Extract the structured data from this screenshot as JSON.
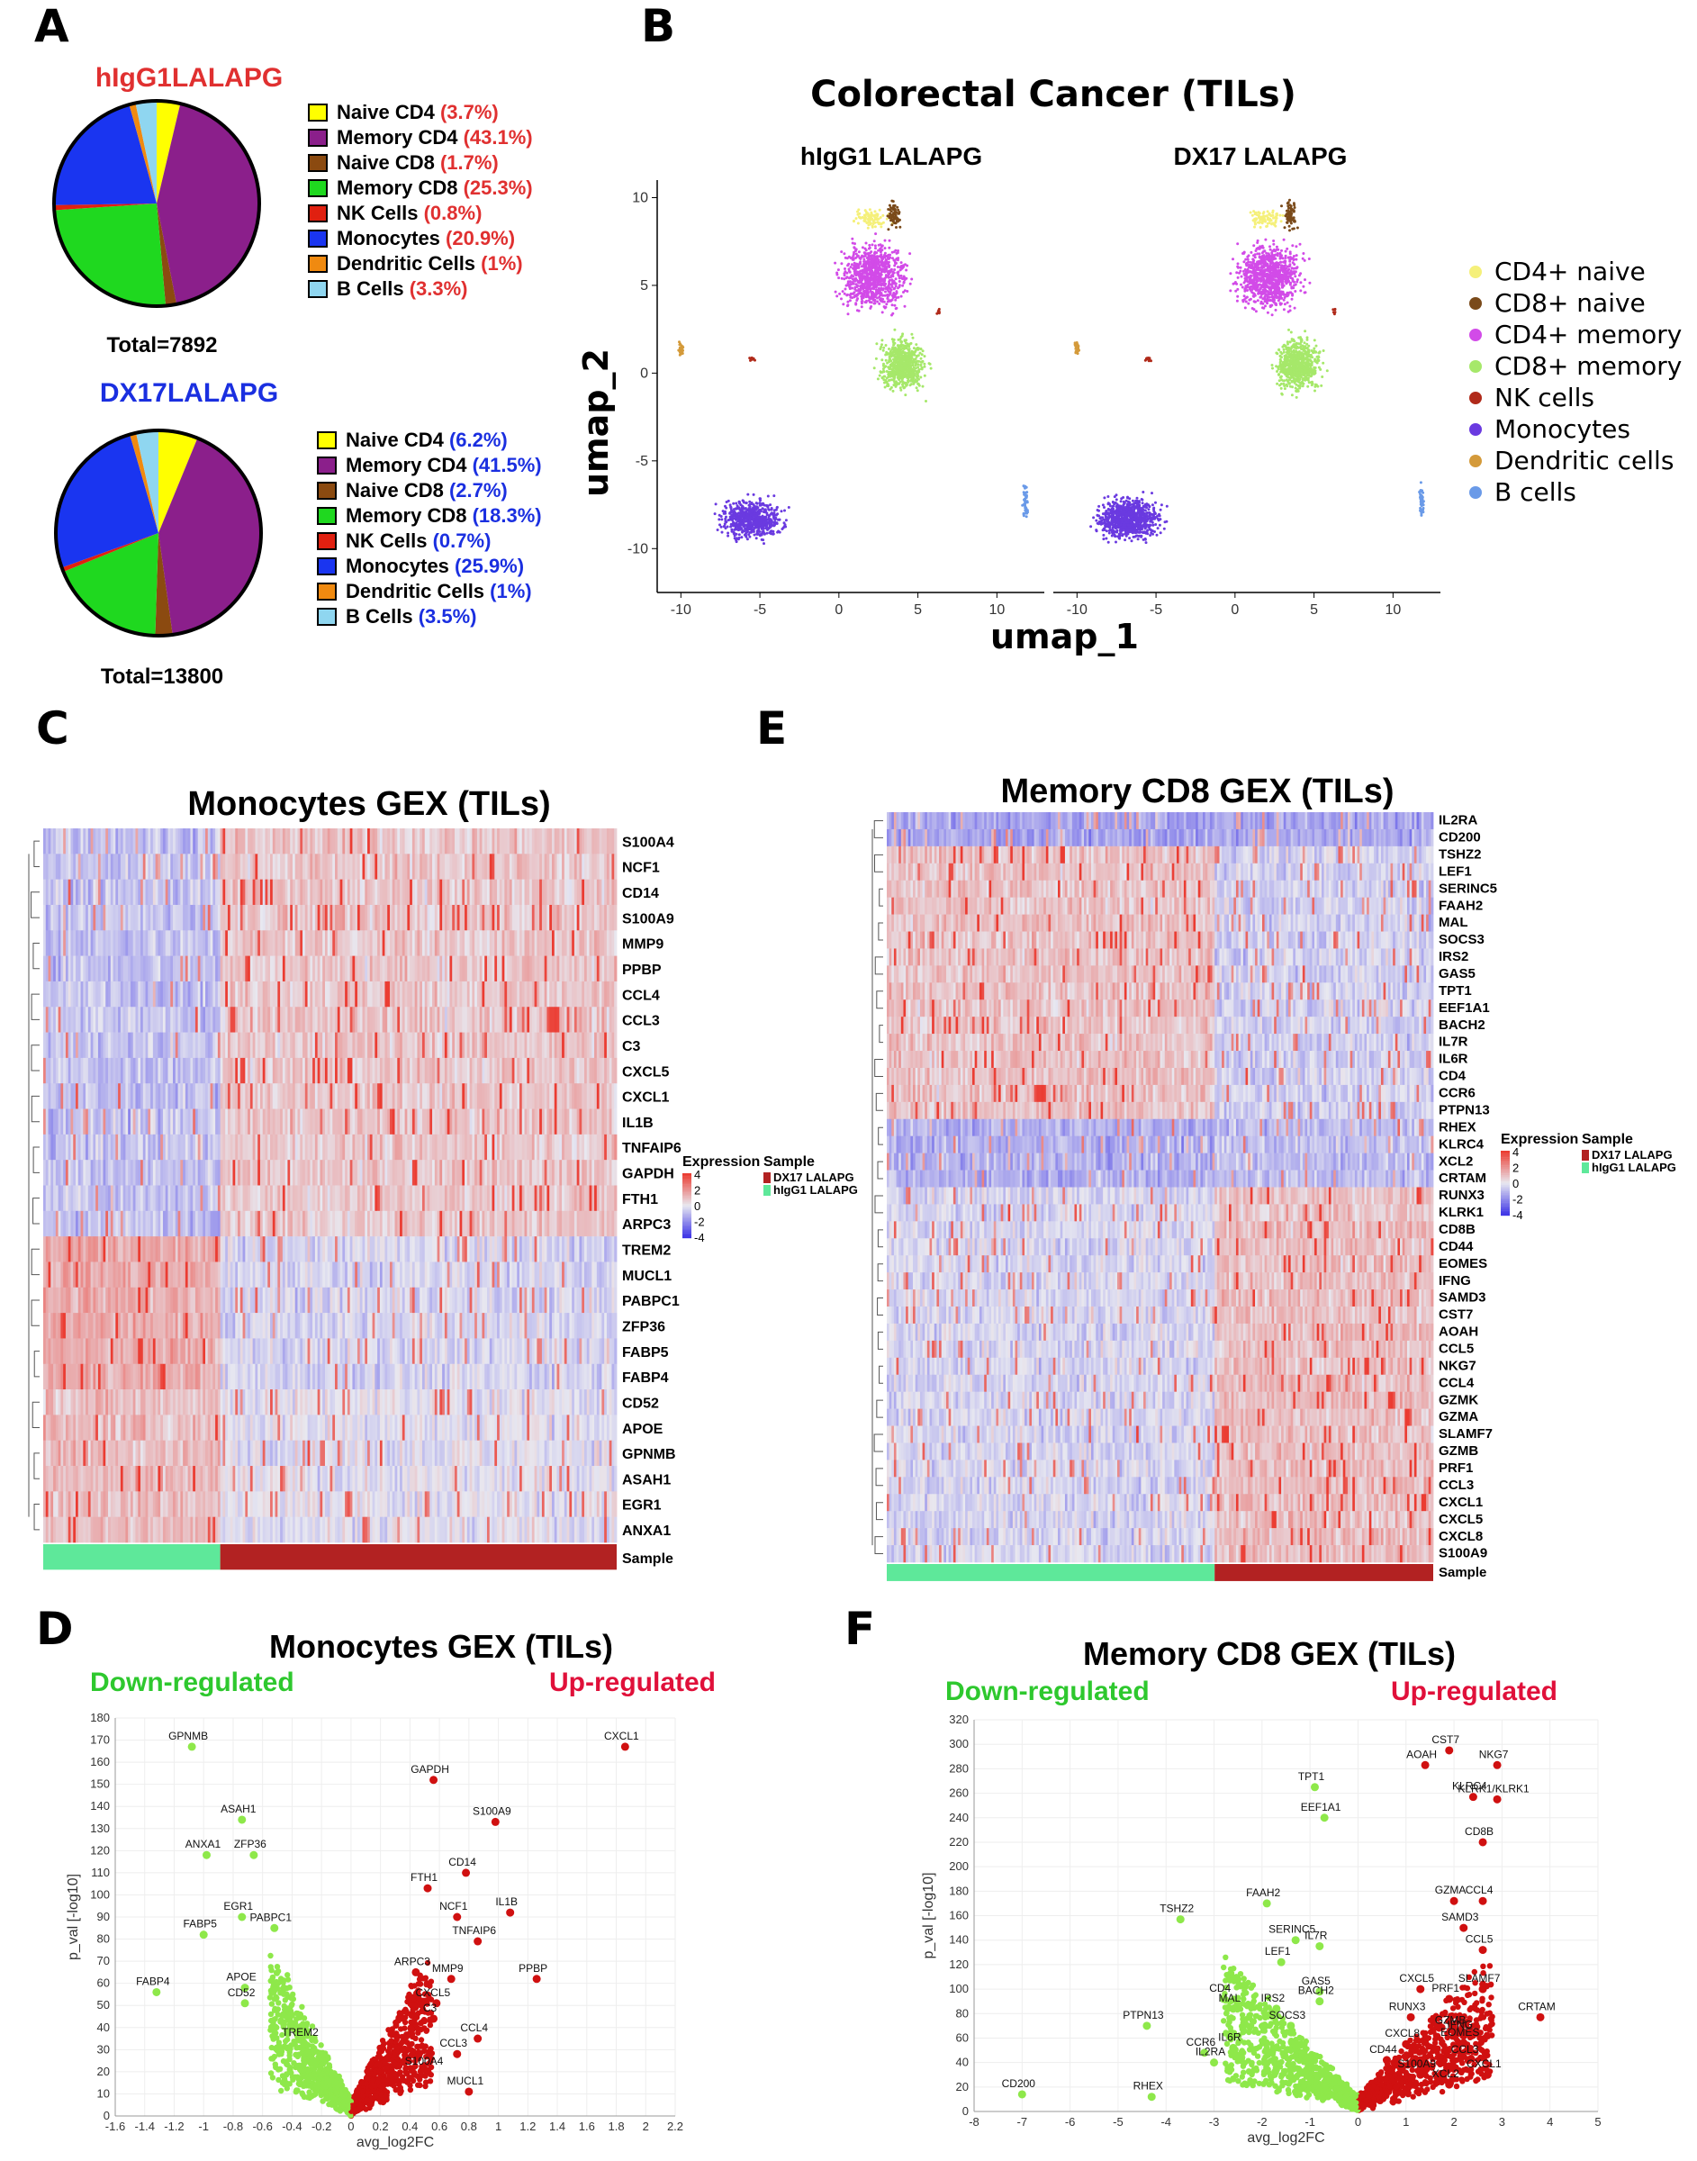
{
  "panels": {
    "A": {
      "letter": "A",
      "pie1": {
        "title": "hIgG1LALAPG",
        "title_color": "#e03030",
        "total": "Total=7892",
        "value_color": "#e03030",
        "slices": [
          {
            "label": "Naive CD4",
            "value_text": "(3.7%)",
            "value": 3.7,
            "color": "#ffff00"
          },
          {
            "label": "Memory CD4",
            "value_text": "(43.1%)",
            "value": 43.1,
            "color": "#8b1f8b"
          },
          {
            "label": "Naive CD8",
            "value_text": "(1.7%)",
            "value": 1.7,
            "color": "#8b4a10"
          },
          {
            "label": "Memory CD8",
            "value_text": "(25.3%)",
            "value": 25.3,
            "color": "#1fd81f"
          },
          {
            "label": "NK Cells",
            "value_text": "(0.8%)",
            "value": 0.8,
            "color": "#e02010"
          },
          {
            "label": "Monocytes",
            "value_text": "(20.9%)",
            "value": 20.9,
            "color": "#1a35f0"
          },
          {
            "label": "Dendritic Cells",
            "value_text": "(1%)",
            "value": 1,
            "color": "#f08a10"
          },
          {
            "label": "B Cells",
            "value_text": "(3.3%)",
            "value": 3.3,
            "color": "#8fd6f0"
          }
        ]
      },
      "pie2": {
        "title": "DX17LALAPG",
        "title_color": "#1a2fe0",
        "total": "Total=13800",
        "value_color": "#1a2fe0",
        "slices": [
          {
            "label": "Naive CD4",
            "value_text": "(6.2%)",
            "value": 6.2,
            "color": "#ffff00"
          },
          {
            "label": "Memory CD4",
            "value_text": "(41.5%)",
            "value": 41.5,
            "color": "#8b1f8b"
          },
          {
            "label": "Naive CD8",
            "value_text": "(2.7%)",
            "value": 2.7,
            "color": "#8b4a10"
          },
          {
            "label": "Memory CD8",
            "value_text": "(18.3%)",
            "value": 18.3,
            "color": "#1fd81f"
          },
          {
            "label": "NK Cells",
            "value_text": "(0.7%)",
            "value": 0.7,
            "color": "#e02010"
          },
          {
            "label": "Monocytes",
            "value_text": "(25.9%)",
            "value": 25.9,
            "color": "#1a35f0"
          },
          {
            "label": "Dendritic Cells",
            "value_text": "(1%)",
            "value": 1,
            "color": "#f08a10"
          },
          {
            "label": "B Cells",
            "value_text": "(3.5%)",
            "value": 3.5,
            "color": "#8fd6f0"
          }
        ]
      }
    },
    "B": {
      "letter": "B",
      "title": "Colorectal Cancer (TILs)",
      "sub_left": "hIgG1 LALAPG",
      "sub_right": "DX17 LALAPG",
      "xlabel": "umap_1",
      "ylabel": "umap_2",
      "xticks": [
        "-10",
        "-5",
        "0",
        "5",
        "10"
      ],
      "yticks": [
        "10",
        "5",
        "0",
        "-5",
        "-10"
      ],
      "legend": [
        {
          "label": "CD4+ naive",
          "color": "#f5f07a"
        },
        {
          "label": "CD8+ naive",
          "color": "#7a4a1a"
        },
        {
          "label": "CD4+ memory",
          "color": "#d24be8"
        },
        {
          "label": "CD8+ memory",
          "color": "#a6e86a"
        },
        {
          "label": "NK cells",
          "color": "#b02a1a"
        },
        {
          "label": "Monocytes",
          "color": "#6a3ae0"
        },
        {
          "label": "Dendritic cells",
          "color": "#d49a3a"
        },
        {
          "label": "B cells",
          "color": "#6a9ae8"
        }
      ]
    },
    "C": {
      "letter": "C",
      "title": "Monocytes GEX (TILs)",
      "genes": [
        "S100A4",
        "NCF1",
        "CD14",
        "S100A9",
        "MMP9",
        "PPBP",
        "CCL4",
        "CCL3",
        "C3",
        "CXCL5",
        "CXCL1",
        "IL1B",
        "TNFAIP6",
        "GAPDH",
        "FTH1",
        "ARPC3",
        "TREM2",
        "MUCL1",
        "PABPC1",
        "ZFP36",
        "FABP5",
        "FABP4",
        "CD52",
        "APOE",
        "GPNMB",
        "ASAH1",
        "EGR1",
        "ANXA1"
      ],
      "sample_label": "Sample",
      "legend_expr": "Expression",
      "legend_sample": "Sample",
      "legend_ticks": [
        "4",
        "2",
        "0",
        "-2",
        "-4"
      ],
      "sample_entries": [
        {
          "label": "DX17 LALAPG",
          "color": "#b22222"
        },
        {
          "label": "hIgG1 LALAPG",
          "color": "#5ee89a"
        }
      ]
    },
    "E": {
      "letter": "E",
      "title": "Memory CD8 GEX (TILs)",
      "genes": [
        "IL2RA",
        "CD200",
        "TSHZ2",
        "LEF1",
        "SERINC5",
        "FAAH2",
        "MAL",
        "SOCS3",
        "IRS2",
        "GAS5",
        "TPT1",
        "EEF1A1",
        "BACH2",
        "IL7R",
        "IL6R",
        "CD4",
        "CCR6",
        "PTPN13",
        "RHEX",
        "KLRC4",
        "XCL2",
        "CRTAM",
        "RUNX3",
        "KLRK1",
        "CD8B",
        "CD44",
        "EOMES",
        "IFNG",
        "SAMD3",
        "CST7",
        "AOAH",
        "CCL5",
        "NKG7",
        "CCL4",
        "GZMK",
        "GZMA",
        "SLAMF7",
        "GZMB",
        "PRF1",
        "CCL3",
        "CXCL1",
        "CXCL5",
        "CXCL8",
        "S100A9"
      ],
      "sample_label": "Sample",
      "legend_expr": "Expression",
      "legend_sample": "Sample",
      "legend_ticks": [
        "4",
        "2",
        "0",
        "-2",
        "-4"
      ],
      "sample_entries": [
        {
          "label": "DX17 LALAPG",
          "color": "#b22222"
        },
        {
          "label": "hIgG1 LALAPG",
          "color": "#5ee89a"
        }
      ]
    },
    "D": {
      "letter": "D",
      "title": "Monocytes GEX (TILs)",
      "down_label": "Down-regulated",
      "up_label": "Up-regulated"
    },
    "F": {
      "letter": "F",
      "title": "Memory CD8 GEX (TILs)",
      "down_label": "Down-regulated",
      "up_label": "Up-regulated"
    }
  },
  "chart_data": [
    {
      "type": "scatter",
      "title": "Monocytes GEX (TILs)",
      "xlabel": "avg_log2FC",
      "ylabel": "p_val [-log10]",
      "xlim": [
        -1.6,
        2.2
      ],
      "ylim": [
        0,
        180
      ],
      "xticks": [
        "-1.6",
        "-1.4",
        "-1.2",
        "-1",
        "-0.8",
        "-0.6",
        "-0.4",
        "-0.2",
        "0",
        "0.2",
        "0.4",
        "0.6",
        "0.8",
        "1",
        "1.2",
        "1.4",
        "1.6",
        "1.8",
        "2",
        "2.2"
      ],
      "xtick_values": [
        -1.6,
        -1.4,
        -1.2,
        -1,
        -0.8,
        -0.6,
        -0.4,
        -0.2,
        0,
        0.2,
        0.4,
        0.6,
        0.8,
        1,
        1.2,
        1.4,
        1.6,
        1.8,
        2,
        2.2
      ],
      "yticks": [
        "0",
        "10",
        "20",
        "30",
        "40",
        "50",
        "60",
        "70",
        "80",
        "90",
        "100",
        "110",
        "120",
        "130",
        "140",
        "150",
        "160",
        "170",
        "180"
      ],
      "ytick_values": [
        0,
        10,
        20,
        30,
        40,
        50,
        60,
        70,
        80,
        90,
        100,
        110,
        120,
        130,
        140,
        150,
        160,
        170,
        180
      ],
      "labeled_points": [
        {
          "gene": "GPNMB",
          "x": -1.08,
          "y": 167,
          "dir": "down"
        },
        {
          "gene": "ASAH1",
          "x": -0.74,
          "y": 134,
          "dir": "down"
        },
        {
          "gene": "ANXA1",
          "x": -0.98,
          "y": 118,
          "dir": "down"
        },
        {
          "gene": "ZFP36",
          "x": -0.66,
          "y": 118,
          "dir": "down"
        },
        {
          "gene": "EGR1",
          "x": -0.74,
          "y": 90,
          "dir": "down"
        },
        {
          "gene": "FABP5",
          "x": -1.0,
          "y": 82,
          "dir": "down"
        },
        {
          "gene": "PABPC1",
          "x": -0.52,
          "y": 85,
          "dir": "down"
        },
        {
          "gene": "FABP4",
          "x": -1.32,
          "y": 56,
          "dir": "down"
        },
        {
          "gene": "APOE",
          "x": -0.72,
          "y": 58,
          "dir": "down"
        },
        {
          "gene": "CD52",
          "x": -0.72,
          "y": 51,
          "dir": "down"
        },
        {
          "gene": "TREM2",
          "x": -0.32,
          "y": 33,
          "dir": "down"
        },
        {
          "gene": "CXCL1",
          "x": 1.86,
          "y": 167,
          "dir": "up"
        },
        {
          "gene": "GAPDH",
          "x": 0.56,
          "y": 152,
          "dir": "up"
        },
        {
          "gene": "S100A9",
          "x": 0.98,
          "y": 133,
          "dir": "up"
        },
        {
          "gene": "CD14",
          "x": 0.78,
          "y": 110,
          "dir": "up"
        },
        {
          "gene": "FTH1",
          "x": 0.52,
          "y": 103,
          "dir": "up"
        },
        {
          "gene": "NCF1",
          "x": 0.72,
          "y": 90,
          "dir": "up"
        },
        {
          "gene": "IL1B",
          "x": 1.08,
          "y": 92,
          "dir": "up"
        },
        {
          "gene": "TNFAIP6",
          "x": 0.86,
          "y": 79,
          "dir": "up"
        },
        {
          "gene": "ARPC3",
          "x": 0.44,
          "y": 65,
          "dir": "up"
        },
        {
          "gene": "MMP9",
          "x": 0.68,
          "y": 62,
          "dir": "up"
        },
        {
          "gene": "PPBP",
          "x": 1.26,
          "y": 62,
          "dir": "up"
        },
        {
          "gene": "CXCL5",
          "x": 0.58,
          "y": 51,
          "dir": "up"
        },
        {
          "gene": "C3",
          "x": 0.56,
          "y": 44,
          "dir": "up"
        },
        {
          "gene": "CCL4",
          "x": 0.86,
          "y": 35,
          "dir": "up"
        },
        {
          "gene": "CCL3",
          "x": 0.72,
          "y": 28,
          "dir": "up"
        },
        {
          "gene": "S100A4",
          "x": 0.52,
          "y": 20,
          "dir": "up"
        },
        {
          "gene": "MUCL1",
          "x": 0.8,
          "y": 11,
          "dir": "up"
        }
      ]
    },
    {
      "type": "scatter",
      "title": "Memory CD8 GEX (TILs)",
      "xlabel": "avg_log2FC",
      "ylabel": "p_val [-log10]",
      "xlim": [
        -8,
        5
      ],
      "ylim": [
        0,
        320
      ],
      "xticks": [
        "-8",
        "-7",
        "-6",
        "-5",
        "-4",
        "-3",
        "-2",
        "-1",
        "0",
        "1",
        "2",
        "3",
        "4",
        "5"
      ],
      "xtick_values": [
        -8,
        -7,
        -6,
        -5,
        -4,
        -3,
        -2,
        -1,
        0,
        1,
        2,
        3,
        4,
        5
      ],
      "yticks": [
        "0",
        "20",
        "40",
        "60",
        "80",
        "100",
        "120",
        "140",
        "160",
        "180",
        "200",
        "220",
        "240",
        "260",
        "280",
        "300",
        "320"
      ],
      "ytick_values": [
        0,
        20,
        40,
        60,
        80,
        100,
        120,
        140,
        160,
        180,
        200,
        220,
        240,
        260,
        280,
        300,
        320
      ],
      "labeled_points": [
        {
          "gene": "CD200",
          "x": -7.0,
          "y": 14,
          "dir": "down"
        },
        {
          "gene": "TSHZ2",
          "x": -3.7,
          "y": 157,
          "dir": "down"
        },
        {
          "gene": "PTPN13",
          "x": -4.4,
          "y": 70,
          "dir": "down"
        },
        {
          "gene": "RHEX",
          "x": -4.3,
          "y": 12,
          "dir": "down"
        },
        {
          "gene": "CCR6",
          "x": -3.2,
          "y": 48,
          "dir": "down"
        },
        {
          "gene": "IL2RA",
          "x": -3.0,
          "y": 40,
          "dir": "down"
        },
        {
          "gene": "IL6R",
          "x": -2.6,
          "y": 52,
          "dir": "down"
        },
        {
          "gene": "CD4",
          "x": -2.8,
          "y": 92,
          "dir": "down"
        },
        {
          "gene": "MAL",
          "x": -2.6,
          "y": 84,
          "dir": "down"
        },
        {
          "gene": "IRS2",
          "x": -1.7,
          "y": 84,
          "dir": "down"
        },
        {
          "gene": "SOCS3",
          "x": -1.4,
          "y": 70,
          "dir": "down"
        },
        {
          "gene": "FAAH2",
          "x": -1.9,
          "y": 170,
          "dir": "down"
        },
        {
          "gene": "SERINC5",
          "x": -1.3,
          "y": 140,
          "dir": "down"
        },
        {
          "gene": "LEF1",
          "x": -1.6,
          "y": 122,
          "dir": "down"
        },
        {
          "gene": "IL7R",
          "x": -0.8,
          "y": 135,
          "dir": "down"
        },
        {
          "gene": "GAS5",
          "x": -0.8,
          "y": 98,
          "dir": "down"
        },
        {
          "gene": "BACH2",
          "x": -0.8,
          "y": 90,
          "dir": "down"
        },
        {
          "gene": "TPT1",
          "x": -0.9,
          "y": 265,
          "dir": "down"
        },
        {
          "gene": "EEF1A1",
          "x": -0.7,
          "y": 240,
          "dir": "down"
        },
        {
          "gene": "CST7",
          "x": 1.9,
          "y": 295,
          "dir": "up"
        },
        {
          "gene": "AOAH",
          "x": 1.4,
          "y": 283,
          "dir": "up"
        },
        {
          "gene": "NKG7",
          "x": 2.9,
          "y": 283,
          "dir": "up"
        },
        {
          "gene": "KLRC4",
          "x": 2.4,
          "y": 257,
          "dir": "up"
        },
        {
          "gene": "KLRK1/KLRK1",
          "x": 2.9,
          "y": 255,
          "dir": "up"
        },
        {
          "gene": "CD8B",
          "x": 2.6,
          "y": 220,
          "dir": "up"
        },
        {
          "gene": "GZMA",
          "x": 2.0,
          "y": 172,
          "dir": "up"
        },
        {
          "gene": "CCL4",
          "x": 2.6,
          "y": 172,
          "dir": "up"
        },
        {
          "gene": "SAMD3",
          "x": 2.2,
          "y": 150,
          "dir": "up"
        },
        {
          "gene": "CCL5",
          "x": 2.6,
          "y": 132,
          "dir": "up"
        },
        {
          "gene": "SLAMF7",
          "x": 2.6,
          "y": 100,
          "dir": "up"
        },
        {
          "gene": "CXCL5",
          "x": 1.3,
          "y": 100,
          "dir": "up"
        },
        {
          "gene": "PRF1",
          "x": 1.9,
          "y": 92,
          "dir": "up"
        },
        {
          "gene": "CRTAM",
          "x": 3.8,
          "y": 77,
          "dir": "up"
        },
        {
          "gene": "RUNX3",
          "x": 1.1,
          "y": 77,
          "dir": "up"
        },
        {
          "gene": "GZMB",
          "x": 2.0,
          "y": 66,
          "dir": "up"
        },
        {
          "gene": "IFNG",
          "x": 2.2,
          "y": 62,
          "dir": "up"
        },
        {
          "gene": "EOMES",
          "x": 2.2,
          "y": 56,
          "dir": "up"
        },
        {
          "gene": "CXCL8",
          "x": 1.0,
          "y": 55,
          "dir": "up"
        },
        {
          "gene": "CCL3",
          "x": 2.3,
          "y": 42,
          "dir": "up"
        },
        {
          "gene": "CXCL1",
          "x": 2.7,
          "y": 30,
          "dir": "up"
        },
        {
          "gene": "CD44",
          "x": 0.6,
          "y": 42,
          "dir": "up"
        },
        {
          "gene": "S100A9",
          "x": 1.3,
          "y": 30,
          "dir": "up"
        },
        {
          "gene": "XCL2",
          "x": 1.9,
          "y": 22,
          "dir": "up"
        }
      ]
    }
  ]
}
